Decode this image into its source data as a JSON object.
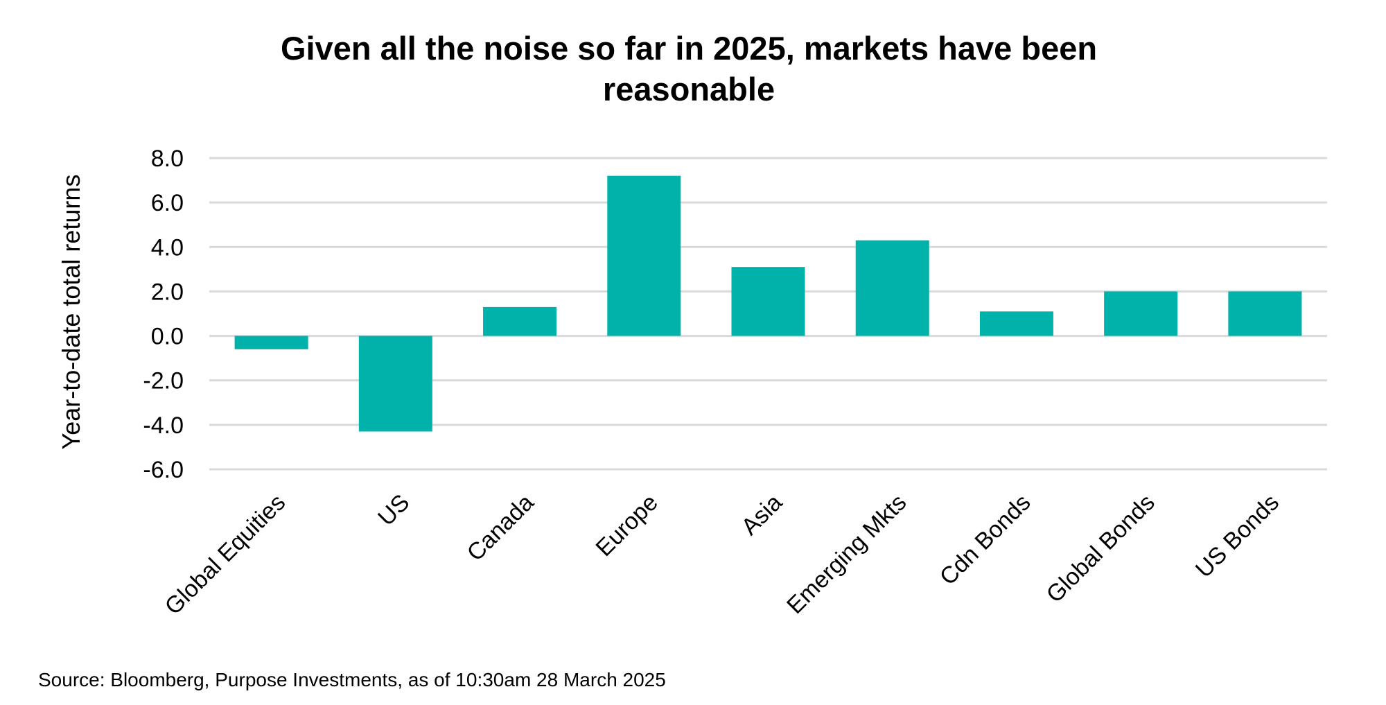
{
  "chart_data": {
    "type": "bar",
    "title_lines": [
      "Given all the noise so far in 2025, markets have been",
      "reasonable"
    ],
    "xlabel": "",
    "ylabel": "Year-to-date total returns",
    "categories": [
      "Global Equities",
      "US",
      "Canada",
      "Europe",
      "Asia",
      "Emerging Mkts",
      "Cdn Bonds",
      "Global Bonds",
      "US Bonds"
    ],
    "values": [
      -0.6,
      -4.3,
      1.3,
      7.2,
      3.1,
      4.3,
      1.1,
      2.0,
      2.0
    ],
    "ylim": [
      -6,
      8
    ],
    "yticks": [
      "8.0",
      "6.0",
      "4.0",
      "2.0",
      "0.0",
      "-2.0",
      "-4.0",
      "-6.0"
    ],
    "ytick_values": [
      8,
      6,
      4,
      2,
      0,
      -2,
      -4,
      -6
    ],
    "grid": true,
    "legend": "none",
    "bar_color": "#00B2A9",
    "grid_color": "#D9D9D9"
  },
  "source": "Source: Bloomberg, Purpose Investments, as of 10:30am 28 March 2025"
}
